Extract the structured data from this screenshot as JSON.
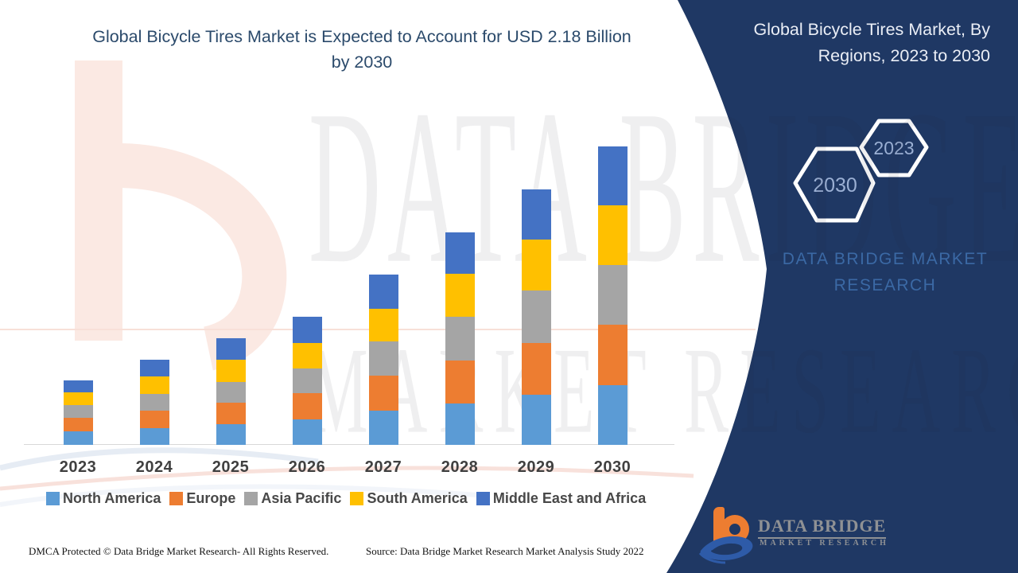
{
  "header": {
    "title_line1": "Global Bicycle Tires Market is Expected to Account for USD 2.18 Billion",
    "title_line2": "by 2030",
    "title_color": "#2B4A6B"
  },
  "side_panel": {
    "bg_color": "#1F3864",
    "title_line1": "Global Bicycle Tires Market, By",
    "title_line2": "Regions, 2023 to 2030",
    "hexagon_back_label": "2030",
    "hexagon_front_label": "2023",
    "brand_line1": "DATA BRIDGE MARKET",
    "brand_line2": "RESEARCH"
  },
  "logo": {
    "name": "DATA BRIDGE",
    "tagline": "MARKET RESEARCH",
    "monogram_color": "#ED7D31",
    "swoosh_color": "#2E5BA8"
  },
  "watermark": {
    "line1": "DATA BRIDGE",
    "line2": "MARKET RESEARCH"
  },
  "footer": {
    "dmca": "DMCA Protected © Data Bridge Market Research- All Rights Reserved.",
    "source": "Source: Data Bridge Market Research Market Analysis Study 2022"
  },
  "chart_data": {
    "type": "bar",
    "stacked": true,
    "title": "Global Bicycle Tires Market, By Regions, 2023 to 2030",
    "unit": "USD billion",
    "note": "Market expected to account for USD 2.18 billion by 2030; no y-axis shown, values estimated from bar heights",
    "categories": [
      "2023",
      "2024",
      "2025",
      "2026",
      "2027",
      "2028",
      "2029",
      "2030"
    ],
    "series": [
      {
        "name": "North America",
        "color": "#5B9BD5",
        "values": [
          0.096,
          0.122,
          0.151,
          0.186,
          0.25,
          0.302,
          0.366,
          0.436
        ]
      },
      {
        "name": "Europe",
        "color": "#ED7D31",
        "values": [
          0.099,
          0.128,
          0.157,
          0.192,
          0.256,
          0.314,
          0.378,
          0.442
        ]
      },
      {
        "name": "Asia Pacific",
        "color": "#A5A5A5",
        "values": [
          0.093,
          0.122,
          0.151,
          0.18,
          0.25,
          0.32,
          0.384,
          0.436
        ]
      },
      {
        "name": "South America",
        "color": "#FFC000",
        "values": [
          0.093,
          0.128,
          0.163,
          0.186,
          0.238,
          0.314,
          0.372,
          0.436
        ]
      },
      {
        "name": "Middle East and Africa",
        "color": "#4472C4",
        "values": [
          0.087,
          0.122,
          0.157,
          0.192,
          0.25,
          0.302,
          0.366,
          0.43
        ]
      }
    ],
    "totals": [
      0.468,
      0.622,
      0.779,
      0.936,
      1.244,
      1.552,
      1.866,
      2.18
    ],
    "xlabel": "",
    "ylabel": "",
    "ylim": [
      0,
      2.3
    ],
    "grid": false,
    "legend_position": "bottom"
  }
}
